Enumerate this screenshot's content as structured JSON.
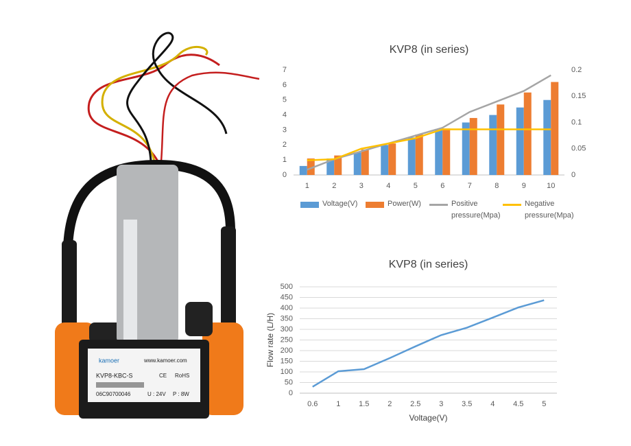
{
  "product_label": {
    "brand": "kamoer",
    "url": "www.kamoer.com",
    "model": "KVP8-KBC-S",
    "ce": "CE",
    "rohs": "RoHS",
    "serial": "06C90700046",
    "voltage": "U : 24V",
    "power": "P : 8W"
  },
  "chart_data": [
    {
      "type": "bar",
      "title": "KVP8 (in series)",
      "categories": [
        "1",
        "2",
        "3",
        "4",
        "5",
        "6",
        "7",
        "8",
        "9",
        "10"
      ],
      "series": [
        {
          "name": "Voltage(V)",
          "type": "bar",
          "color": "#5b9bd5",
          "values": [
            0.6,
            1.1,
            1.5,
            2,
            2.5,
            3,
            3.5,
            4,
            4.5,
            5
          ]
        },
        {
          "name": "Power(W)",
          "type": "bar",
          "color": "#ed7d31",
          "values": [
            1.1,
            1.3,
            1.7,
            2.1,
            2.7,
            3.1,
            3.8,
            4.7,
            5.5,
            6.2
          ]
        },
        {
          "name": "Positive pressure(Mpa)",
          "type": "line",
          "axis": "y2",
          "color": "#a5a5a5",
          "values": [
            0.01,
            0.03,
            0.045,
            0.06,
            0.075,
            0.09,
            0.12,
            0.14,
            0.16,
            0.19
          ]
        },
        {
          "name": "Negative pressure(Mpa)",
          "type": "line",
          "axis": "y2",
          "color": "#ffc000",
          "values": [
            0.028,
            0.03,
            0.05,
            0.06,
            0.07,
            0.087,
            0.087,
            0.087,
            0.087,
            0.087
          ]
        }
      ],
      "ylim": [
        0,
        7
      ],
      "yticks": [
        0,
        1,
        2,
        3,
        4,
        5,
        6,
        7
      ],
      "y2lim": [
        0,
        0.2
      ],
      "y2ticks": [
        0,
        0.05,
        0.1,
        0.15,
        0.2
      ],
      "grid": false,
      "legend": "bottom"
    },
    {
      "type": "line",
      "title": "KVP8 (in series)",
      "categories": [
        "0.6",
        "1",
        "1.5",
        "2",
        "2.5",
        "3",
        "3.5",
        "4",
        "4.5",
        "5"
      ],
      "values": [
        30,
        103,
        113,
        165,
        220,
        273,
        308,
        355,
        403,
        437
      ],
      "color": "#5b9bd5",
      "xlabel": "Voltage(V)",
      "ylabel": "Flow rate (L/H)",
      "ylim": [
        0,
        500
      ],
      "yticks": [
        0,
        50,
        100,
        150,
        200,
        250,
        300,
        350,
        400,
        450,
        500
      ],
      "grid": true
    }
  ]
}
